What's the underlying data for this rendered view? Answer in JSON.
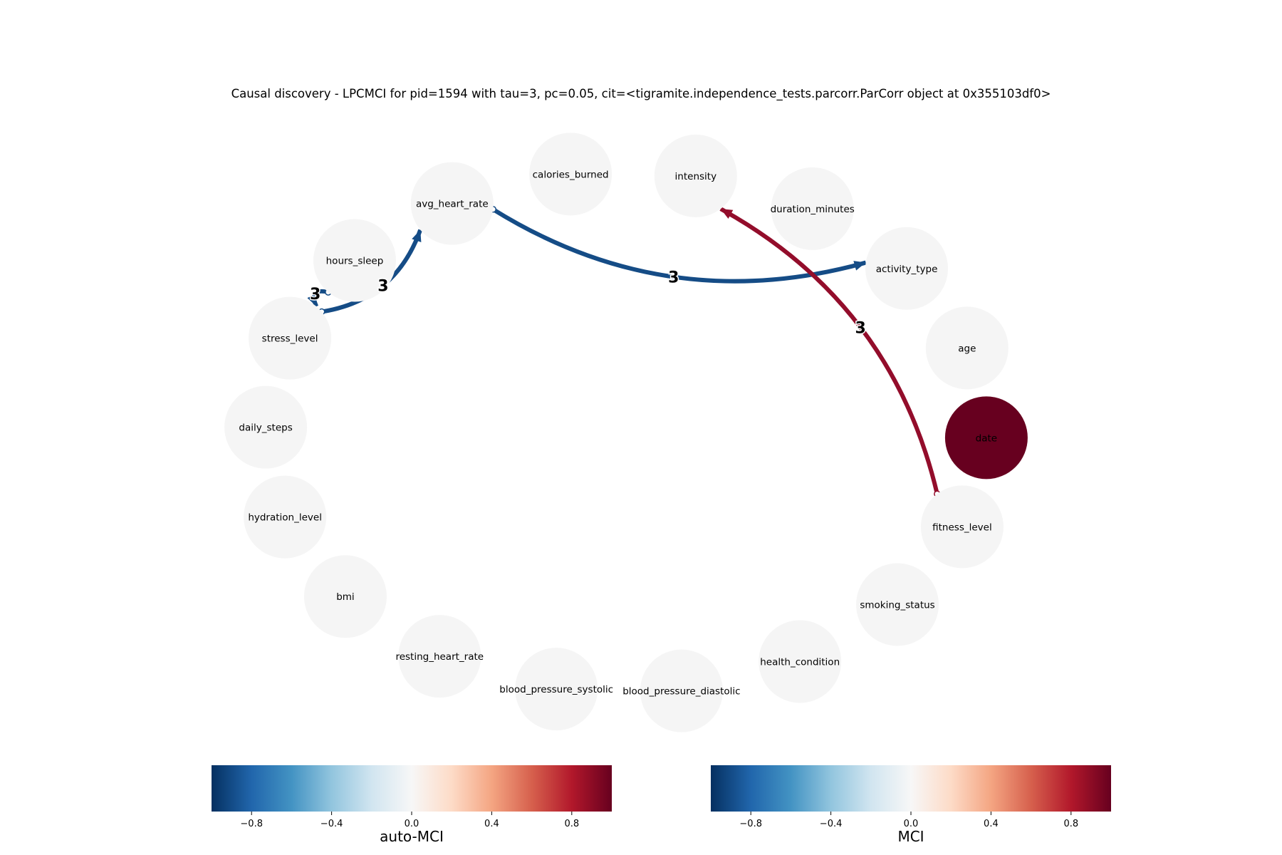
{
  "title": "Causal discovery - LPCMCI for pid=1594 with tau=3, pc=0.05, cit=<tigramite.independence_tests.parcorr.ParCorr object at 0x355103df0>",
  "colors": {
    "node_default": "#f5f5f5",
    "node_date": "#67001f",
    "edge_blue": "#154c86",
    "edge_red": "#930d2b"
  },
  "nodes": [
    {
      "id": "calories_burned",
      "label": "calories_burned"
    },
    {
      "id": "intensity",
      "label": "intensity"
    },
    {
      "id": "duration_minutes",
      "label": "duration_minutes"
    },
    {
      "id": "activity_type",
      "label": "activity_type"
    },
    {
      "id": "age",
      "label": "age"
    },
    {
      "id": "date",
      "label": "date",
      "highlight": true
    },
    {
      "id": "fitness_level",
      "label": "fitness_level"
    },
    {
      "id": "smoking_status",
      "label": "smoking_status"
    },
    {
      "id": "health_condition",
      "label": "health_condition"
    },
    {
      "id": "blood_pressure_diastolic",
      "label": "blood_pressure_diastolic"
    },
    {
      "id": "blood_pressure_systolic",
      "label": "blood_pressure_systolic"
    },
    {
      "id": "resting_heart_rate",
      "label": "resting_heart_rate"
    },
    {
      "id": "bmi",
      "label": "bmi"
    },
    {
      "id": "hydration_level",
      "label": "hydration_level"
    },
    {
      "id": "daily_steps",
      "label": "daily_steps"
    },
    {
      "id": "stress_level",
      "label": "stress_level"
    },
    {
      "id": "hours_sleep",
      "label": "hours_sleep"
    },
    {
      "id": "avg_heart_rate",
      "label": "avg_heart_rate"
    }
  ],
  "edges": [
    {
      "from": "avg_heart_rate",
      "to": "activity_type",
      "label": "3",
      "color": "blue",
      "start": "circle",
      "end": "arrow"
    },
    {
      "from": "stress_level",
      "to": "avg_heart_rate",
      "label": "3",
      "color": "blue",
      "start": "circle",
      "end": "arrow"
    },
    {
      "from": "hours_sleep",
      "to": "stress_level",
      "label": "3",
      "color": "blue",
      "start": "circle",
      "end": "arrow"
    },
    {
      "from": "fitness_level",
      "to": "intensity",
      "label": "3",
      "color": "red",
      "start": "circle",
      "end": "arrow"
    }
  ],
  "colorbars": [
    {
      "id": "auto-mci",
      "label": "auto-MCI",
      "ticks": [
        "−0.8",
        "−0.4",
        "0.0",
        "0.4",
        "0.8"
      ],
      "range": [
        -1,
        1
      ],
      "tick_values": [
        -0.8,
        -0.4,
        0.0,
        0.4,
        0.8
      ]
    },
    {
      "id": "mci",
      "label": "MCI",
      "ticks": [
        "−0.8",
        "−0.4",
        "0.0",
        "0.4",
        "0.8"
      ],
      "range": [
        -1,
        1
      ],
      "tick_values": [
        -0.8,
        -0.4,
        0.0,
        0.4,
        0.8
      ]
    }
  ],
  "colormap": [
    "#053061",
    "#2166ac",
    "#4393c3",
    "#92c5de",
    "#d1e5f0",
    "#f7f7f7",
    "#fddbc7",
    "#f4a582",
    "#d6604d",
    "#b2182b",
    "#67001f"
  ]
}
